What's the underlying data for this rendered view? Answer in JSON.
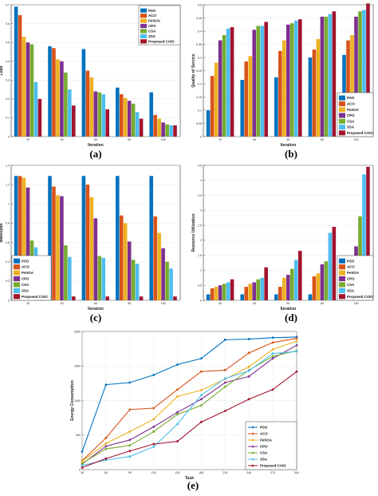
{
  "colors": [
    "#0072BD",
    "#D95319",
    "#EDB120",
    "#7E2F8E",
    "#77AC30",
    "#4DBEEE",
    "#A2142F"
  ],
  "legend_labels": [
    "PSO",
    "ACO",
    "PeSOA",
    "CPO",
    "CSA",
    "SSA",
    "Proposed CrSO"
  ],
  "chart_data": [
    {
      "type": "bar",
      "panel_label": "(a)",
      "categories": [
        "20",
        "40",
        "60",
        "80",
        "100"
      ],
      "xlabel": "Iteration",
      "ylabel": "Load",
      "ylim": [
        0,
        0.7
      ],
      "yticks": [
        "0",
        "0.1",
        "0.2",
        "0.3",
        "0.4",
        "0.5",
        "0.6",
        "0.7"
      ],
      "legend_position": "top-right",
      "series": [
        {
          "name": "PSO",
          "values": [
            0.69,
            0.48,
            0.465,
            0.26,
            0.235
          ]
        },
        {
          "name": "ACO",
          "values": [
            0.645,
            0.47,
            0.35,
            0.225,
            0.115
          ]
        },
        {
          "name": "PeSOA",
          "values": [
            0.53,
            0.41,
            0.315,
            0.205,
            0.095
          ]
        },
        {
          "name": "CPO",
          "values": [
            0.5,
            0.4,
            0.24,
            0.19,
            0.075
          ]
        },
        {
          "name": "CSA",
          "values": [
            0.49,
            0.34,
            0.235,
            0.175,
            0.065
          ]
        },
        {
          "name": "SSA",
          "values": [
            0.29,
            0.25,
            0.225,
            0.13,
            0.06
          ]
        },
        {
          "name": "Proposed CrSO",
          "values": [
            0.2,
            0.165,
            0.145,
            0.095,
            0.06
          ]
        }
      ]
    },
    {
      "type": "bar",
      "panel_label": "(b)",
      "categories": [
        "20",
        "40",
        "60",
        "80",
        "100"
      ],
      "xlabel": "Iteration",
      "ylabel": "Quality of Service",
      "ylim": [
        0,
        0.5
      ],
      "yticks": [
        "0",
        "0.05",
        "0.1",
        "0.15",
        "0.2",
        "0.25",
        "0.3",
        "0.35",
        "0.4",
        "0.45",
        "0.5"
      ],
      "legend_position": "bottom-right",
      "series": [
        {
          "name": "PSO",
          "values": [
            0.1,
            0.215,
            0.225,
            0.3,
            0.31
          ]
        },
        {
          "name": "ACO",
          "values": [
            0.23,
            0.285,
            0.325,
            0.33,
            0.365
          ]
        },
        {
          "name": "PeSOA",
          "values": [
            0.28,
            0.305,
            0.365,
            0.37,
            0.385
          ]
        },
        {
          "name": "CPO",
          "values": [
            0.365,
            0.405,
            0.425,
            0.455,
            0.455
          ]
        },
        {
          "name": "CSA",
          "values": [
            0.385,
            0.42,
            0.43,
            0.455,
            0.475
          ]
        },
        {
          "name": "SSA",
          "values": [
            0.41,
            0.42,
            0.44,
            0.465,
            0.48
          ]
        },
        {
          "name": "Proposed CrSO",
          "values": [
            0.415,
            0.435,
            0.445,
            0.475,
            0.505
          ]
        }
      ]
    },
    {
      "type": "bar",
      "panel_label": "(c)",
      "categories": [
        "20",
        "40",
        "60",
        "80",
        "100"
      ],
      "xlabel": "Iteration",
      "ylabel": "Makespan",
      "ylim": [
        0,
        1.4
      ],
      "yticks": [
        "0",
        "0.2",
        "0.4",
        "0.6",
        "0.8",
        "1",
        "1.2",
        "1.4"
      ],
      "legend_position": "bottom-left",
      "series": [
        {
          "name": "PSO",
          "values": [
            1.29,
            1.29,
            1.29,
            1.29,
            1.29
          ]
        },
        {
          "name": "ACO",
          "values": [
            1.29,
            1.18,
            1.2,
            0.88,
            0.87
          ]
        },
        {
          "name": "PeSOA",
          "values": [
            1.27,
            1.09,
            1.07,
            0.8,
            0.7
          ]
        },
        {
          "name": "CPO",
          "values": [
            1.17,
            1.08,
            0.85,
            0.61,
            0.54
          ]
        },
        {
          "name": "CSA",
          "values": [
            0.62,
            0.57,
            0.46,
            0.42,
            0.4
          ]
        },
        {
          "name": "SSA",
          "values": [
            0.55,
            0.45,
            0.44,
            0.38,
            0.33
          ]
        },
        {
          "name": "Proposed CrSO",
          "values": [
            0.05,
            0.04,
            0.04,
            0.04,
            0.04
          ]
        }
      ]
    },
    {
      "type": "bar",
      "panel_label": "(d)",
      "categories": [
        "20",
        "40",
        "60",
        "80",
        "100"
      ],
      "xlabel": "Iteration",
      "ylabel": "Resource Utilization",
      "ylim": [
        0,
        4.5
      ],
      "yticks": [
        "0",
        "0.5",
        "1",
        "1.5",
        "2",
        "2.5",
        "3",
        "3.5",
        "4",
        "4.5"
      ],
      "legend_position": "bottom-right",
      "series": [
        {
          "name": "PSO",
          "values": [
            0.2,
            0.2,
            0.2,
            0.2,
            0.3
          ]
        },
        {
          "name": "ACO",
          "values": [
            0.4,
            0.45,
            0.45,
            0.8,
            0.6
          ]
        },
        {
          "name": "PeSOA",
          "values": [
            0.45,
            0.55,
            0.75,
            0.9,
            0.9
          ]
        },
        {
          "name": "CPO",
          "values": [
            0.5,
            0.6,
            0.85,
            1.2,
            1.8
          ]
        },
        {
          "name": "CSA",
          "values": [
            0.55,
            0.7,
            1.05,
            1.3,
            2.8
          ]
        },
        {
          "name": "SSA",
          "values": [
            0.6,
            0.75,
            1.35,
            2.25,
            4.2
          ]
        },
        {
          "name": "Proposed CrSO",
          "values": [
            0.7,
            1.1,
            1.65,
            2.45,
            4.45
          ]
        }
      ]
    },
    {
      "type": "line",
      "panel_label": "(e)",
      "x": [
        30,
        60,
        90,
        120,
        150,
        180,
        210,
        240,
        270,
        300
      ],
      "xticks": [
        "30",
        "60",
        "90",
        "120",
        "150",
        "180",
        "210",
        "240",
        "270",
        "300"
      ],
      "xlabel": "Task",
      "ylabel": "Energy Consumption",
      "xlim": [
        30,
        300
      ],
      "ylim": [
        0,
        2000
      ],
      "yticks": [
        "0",
        "500",
        "1000",
        "1500",
        "2000"
      ],
      "legend_position": "bottom-right",
      "series": [
        {
          "name": "PSO",
          "values": [
            260,
            1230,
            1260,
            1370,
            1520,
            1610,
            1880,
            1890,
            1910,
            1920
          ]
        },
        {
          "name": "ACO",
          "values": [
            130,
            460,
            870,
            890,
            1160,
            1420,
            1440,
            1690,
            1840,
            1900
          ]
        },
        {
          "name": "PeSOA",
          "values": [
            120,
            380,
            550,
            730,
            1060,
            1150,
            1310,
            1490,
            1740,
            1860
          ]
        },
        {
          "name": "CPO",
          "values": [
            80,
            340,
            430,
            620,
            830,
            1020,
            1260,
            1350,
            1610,
            1800
          ]
        },
        {
          "name": "CSA",
          "values": [
            90,
            300,
            350,
            550,
            800,
            930,
            1200,
            1440,
            1640,
            1720
          ]
        },
        {
          "name": "SSA",
          "values": [
            60,
            140,
            190,
            330,
            660,
            1080,
            1320,
            1430,
            1680,
            1710
          ]
        },
        {
          "name": "Proposed CrSO",
          "values": [
            30,
            160,
            270,
            370,
            410,
            690,
            850,
            1020,
            1160,
            1420
          ]
        }
      ]
    }
  ]
}
